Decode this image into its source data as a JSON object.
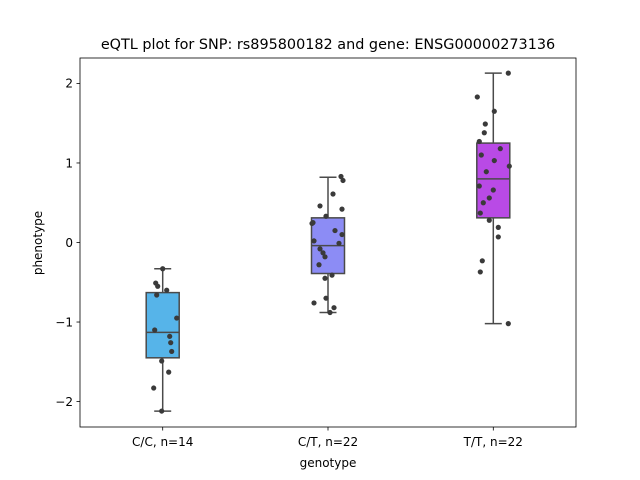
{
  "chart_data": {
    "type": "box",
    "title": "eQTL plot for SNP: rs895800182 and gene: ENSG00000273136",
    "xlabel": "genotype",
    "ylabel": "phenotype",
    "ylim": [
      -2.32,
      2.32
    ],
    "yticks": [
      -2,
      -1,
      0,
      1,
      2
    ],
    "ytick_labels": [
      "−2",
      "−1",
      "0",
      "1",
      "2"
    ],
    "grid": false,
    "groups": [
      {
        "label": "C/C, n=14",
        "color": "#56b4e9",
        "box": {
          "whisker_low": -2.12,
          "q1": -1.45,
          "median": -1.13,
          "q3": -0.63,
          "whisker_high": -0.33
        },
        "points": [
          -0.33,
          -0.51,
          -0.55,
          -0.6,
          -0.66,
          -0.95,
          -1.1,
          -1.18,
          -1.26,
          -1.37,
          -1.49,
          -1.63,
          -1.83,
          -2.12
        ]
      },
      {
        "label": "C/T, n=22",
        "color": "#8c8cf5",
        "box": {
          "whisker_low": -0.88,
          "q1": -0.39,
          "median": -0.04,
          "q3": 0.31,
          "whisker_high": 0.82
        },
        "points": [
          0.83,
          0.78,
          0.61,
          0.46,
          0.42,
          0.33,
          0.25,
          0.15,
          0.1,
          0.02,
          -0.01,
          -0.08,
          -0.13,
          -0.18,
          -0.28,
          -0.41,
          -0.45,
          -0.7,
          -0.76,
          -0.82,
          -0.88,
          0.24
        ]
      },
      {
        "label": "T/T, n=22",
        "color": "#b94ae6",
        "box": {
          "whisker_low": -1.02,
          "q1": 0.31,
          "median": 0.8,
          "q3": 1.25,
          "whisker_high": 2.13
        },
        "points": [
          2.13,
          1.83,
          1.65,
          1.49,
          1.38,
          1.27,
          1.18,
          1.1,
          1.03,
          0.96,
          0.89,
          0.71,
          0.66,
          0.56,
          0.5,
          0.37,
          0.28,
          0.19,
          0.07,
          -0.23,
          -0.37,
          -1.02
        ]
      }
    ]
  }
}
